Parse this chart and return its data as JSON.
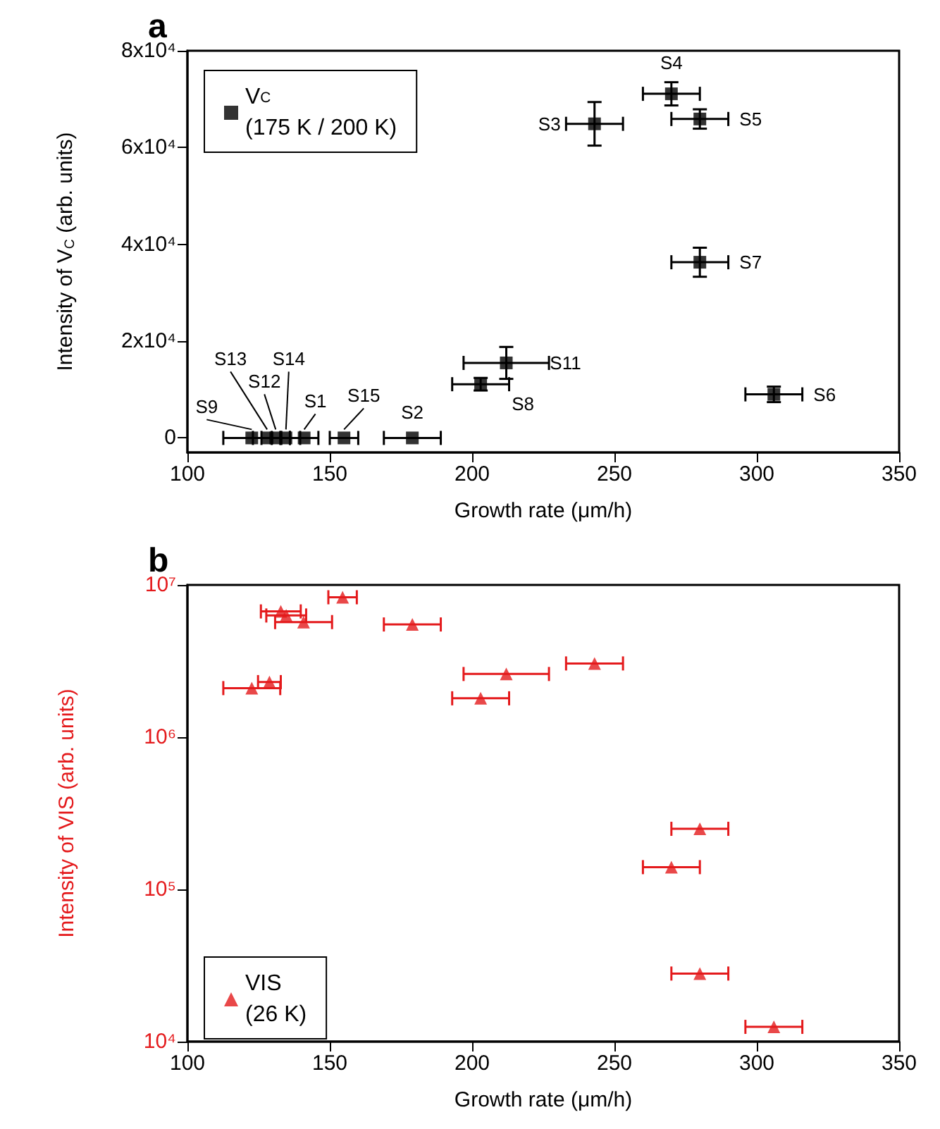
{
  "chart_data": [
    {
      "type": "scatter",
      "title": "a",
      "xlabel": "Growth rate (μm/h)",
      "ylabel": "Intensity of V$_{C}$ (arb. units)",
      "xlim": [
        100,
        350
      ],
      "xticks": [
        100,
        150,
        200,
        250,
        300,
        350
      ],
      "ylim": [
        -3000,
        80000
      ],
      "yticks": [
        0,
        {
          "value": 20000,
          "label": "2x10⁴"
        },
        {
          "value": 40000,
          "label": "4x10⁴"
        },
        {
          "value": 60000,
          "label": "6x10⁴"
        },
        {
          "value": 80000,
          "label": "8x10⁴"
        }
      ],
      "legend": "top left",
      "marker": "square",
      "grid": false,
      "series": [
        {
          "name": "V$_{C}$\n(175 K / 200 K)",
          "color": "#000000",
          "x": [
            243,
            270,
            280,
            280,
            212,
            203,
            306,
            179,
            155,
            141,
            134.6,
            131,
            128,
            122.6
          ],
          "values": [
            64900,
            71100,
            65900,
            36300,
            15500,
            11100,
            9000,
            0,
            0,
            0,
            0,
            0,
            0,
            0
          ],
          "errors": [
            4500,
            2400,
            2000,
            3000,
            3300,
            1300,
            1600,
            null,
            null,
            null,
            null,
            null,
            null,
            null
          ],
          "xerrors": [
            10,
            10,
            10,
            10,
            15,
            10,
            10,
            10,
            5,
            5,
            5,
            5,
            5,
            10
          ]
        }
      ],
      "annotations": [
        {
          "text": "S3",
          "x": 243,
          "y": 64900
        },
        {
          "text": "S4",
          "x": 270,
          "y": 71100
        },
        {
          "text": "S5",
          "x": 280,
          "y": 65900
        },
        {
          "text": "S7",
          "x": 280,
          "y": 36300
        },
        {
          "text": "S11",
          "x": 212,
          "y": 15500
        },
        {
          "text": "S8",
          "x": 203,
          "y": 11100
        },
        {
          "text": "S6",
          "x": 306,
          "y": 9000
        },
        {
          "text": "S2",
          "x": 179,
          "y": 0
        },
        {
          "text": "S15",
          "x": 155,
          "y": 0
        },
        {
          "text": "S1",
          "x": 141,
          "y": 0
        },
        {
          "text": "S14",
          "x": 134.6,
          "y": 0
        },
        {
          "text": "S12",
          "x": 131,
          "y": 0
        },
        {
          "text": "S13",
          "x": 128,
          "y": 0
        },
        {
          "text": "S9",
          "x": 122.6,
          "y": 0
        }
      ]
    },
    {
      "type": "scatter",
      "title": "b",
      "xlabel": "Growth rate (μm/h)",
      "ylabel": "Intensity of VIS (arb. units)",
      "xlim": [
        100,
        350
      ],
      "xticks": [
        100,
        150,
        200,
        250,
        300,
        350
      ],
      "ylim": [
        10000,
        10000000
      ],
      "log": true,
      "yticks": [
        {
          "value": 10000,
          "label": "10⁴"
        },
        {
          "value": 100000,
          "label": "10⁵"
        },
        {
          "value": 1000000,
          "label": "10⁶"
        },
        {
          "value": 10000000,
          "label": "10⁷"
        }
      ],
      "legend": "bottom left",
      "marker": "triangle",
      "grid": false,
      "series": [
        {
          "name": "VIS\n(26 K)",
          "color": "#e41a1c",
          "x": [
            132.8,
            134.7,
            140.8,
            154.5,
            179,
            122.6,
            128.8,
            212,
            203,
            243,
            280,
            270,
            280,
            306
          ],
          "values": [
            6700000,
            6300000,
            5700000,
            8300000,
            5500000,
            2100000,
            2300000,
            2600000,
            1800000,
            3050000,
            250000,
            140000,
            28000,
            12500
          ],
          "xerrors": [
            7,
            7,
            10,
            5,
            10,
            10,
            4,
            15,
            10,
            10,
            10,
            10,
            10,
            10
          ]
        }
      ]
    }
  ]
}
